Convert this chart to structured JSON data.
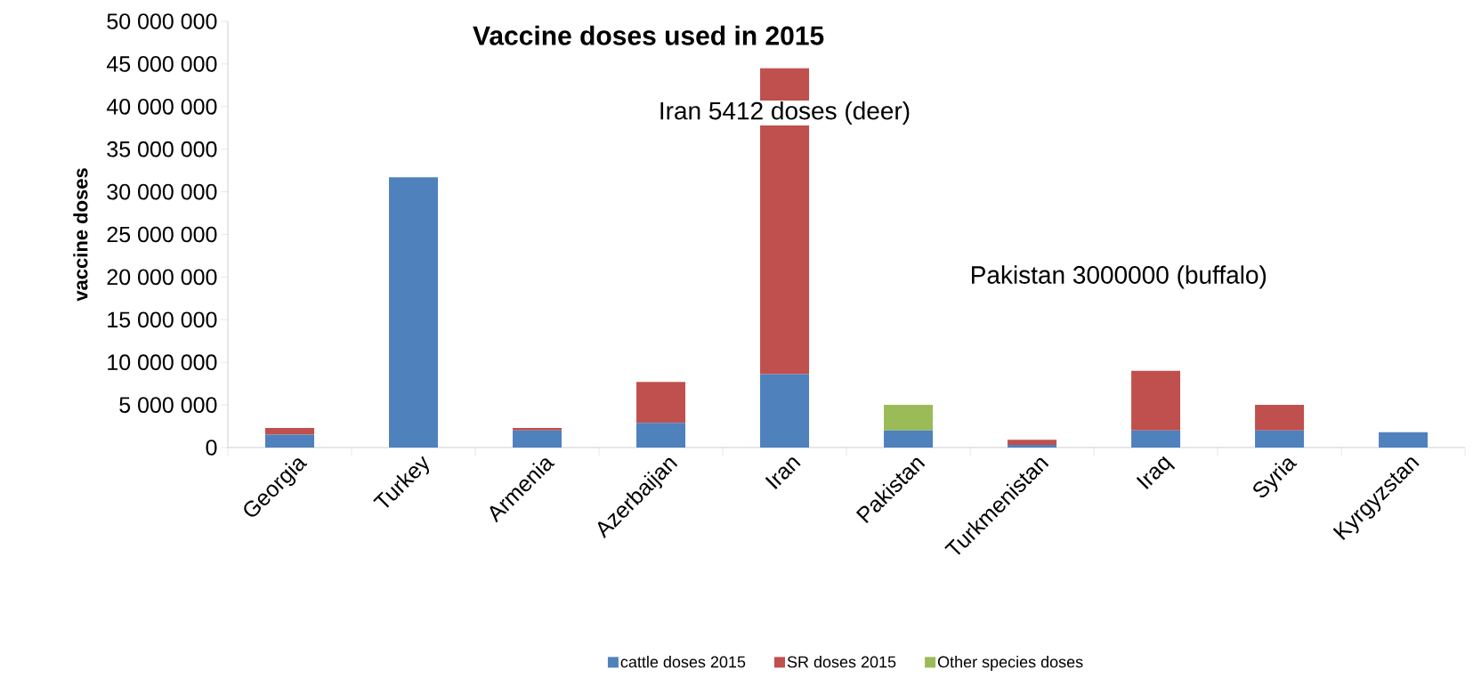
{
  "chart_data": {
    "type": "bar",
    "title": "Vaccine doses used in 2015",
    "ylabel": "vaccine doses",
    "categories": [
      "Georgia",
      "Turkey",
      "Armenia",
      "Azerbaijan",
      "Iran",
      "Pakistan",
      "Turkmenistan",
      "Iraq",
      "Syria",
      "Kyrgyzstan"
    ],
    "stacked": true,
    "series": [
      {
        "name": "cattle doses 2015",
        "color": "#4f81bd",
        "values": [
          1500000,
          31700000,
          2000000,
          2900000,
          8600000,
          2000000,
          300000,
          2000000,
          2000000,
          1800000
        ]
      },
      {
        "name": "SR doses 2015",
        "color": "#c0504d",
        "values": [
          800000,
          0,
          300000,
          4800000,
          35900000,
          0,
          600000,
          7000000,
          3000000,
          0
        ]
      },
      {
        "name": "Other species doses",
        "color": "#9bbb59",
        "values": [
          0,
          0,
          0,
          0,
          0,
          3000000,
          0,
          0,
          0,
          0
        ]
      }
    ],
    "ylim": [
      0,
      50000000
    ],
    "yticks": [
      {
        "value": 0,
        "label": "0"
      },
      {
        "value": 5000000,
        "label": "5 000 000"
      },
      {
        "value": 10000000,
        "label": "10 000 000"
      },
      {
        "value": 15000000,
        "label": "15 000 000"
      },
      {
        "value": 20000000,
        "label": "20 000 000"
      },
      {
        "value": 25000000,
        "label": "25 000 000"
      },
      {
        "value": 30000000,
        "label": "30 000 000"
      },
      {
        "value": 35000000,
        "label": "35 000 000"
      },
      {
        "value": 40000000,
        "label": "40 000 000"
      },
      {
        "value": 45000000,
        "label": "45 000 000"
      },
      {
        "value": 50000000,
        "label": "50 000 000"
      }
    ],
    "annotations": [
      "Iran 5412 doses (deer)",
      "Pakistan 3000000 (buffalo)"
    ],
    "legend": "bottom",
    "grid": false
  }
}
